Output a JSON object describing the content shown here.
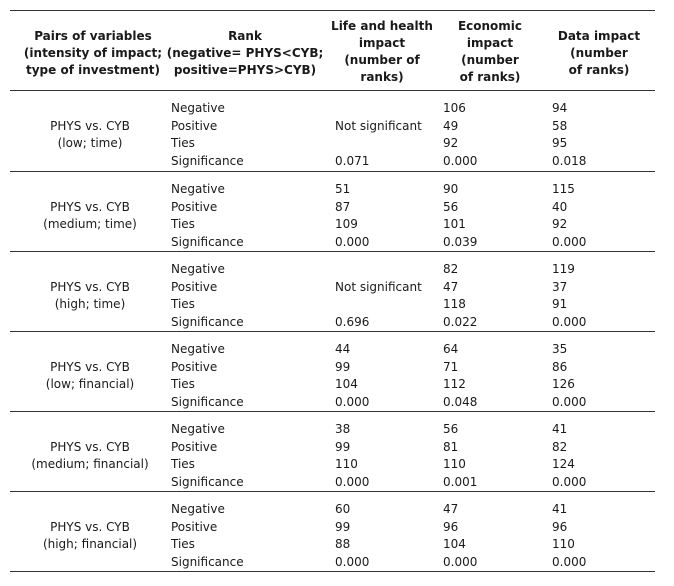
{
  "headers": [
    "Pairs of variables\n(intensity of impact;\ntype of investment)",
    "Rank\n(negative= PHYS<CYB;\npositive=PHYS>CYB)",
    "Life and health\nimpact\n(number of\nranks)",
    "Economic\nimpact\n(number\nof ranks)",
    "Data impact\n(number\nof ranks)"
  ],
  "rank_labels": [
    "Negative",
    "Positive",
    "Ties",
    "Significance"
  ],
  "groups": [
    {
      "pair": [
        "PHYS vs. CYB",
        "(low; time)"
      ],
      "life": [
        "",
        "Not significant",
        "",
        "0.071"
      ],
      "econ": [
        "106",
        "49",
        "92",
        "0.000"
      ],
      "data": [
        "94",
        "58",
        "95",
        "0.018"
      ]
    },
    {
      "pair": [
        "PHYS vs. CYB",
        "(medium; time)"
      ],
      "life": [
        "51",
        "87",
        "109",
        "0.000"
      ],
      "econ": [
        "90",
        "56",
        "101",
        "0.039"
      ],
      "data": [
        "115",
        "40",
        "92",
        "0.000"
      ]
    },
    {
      "pair": [
        "PHYS vs. CYB",
        "(high; time)"
      ],
      "life": [
        "",
        "Not significant",
        "",
        "0.696"
      ],
      "econ": [
        "82",
        "47",
        "118",
        "0.022"
      ],
      "data": [
        "119",
        "37",
        "91",
        "0.000"
      ]
    },
    {
      "pair": [
        "PHYS vs. CYB",
        "(low; financial)"
      ],
      "life": [
        "44",
        "99",
        "104",
        "0.000"
      ],
      "econ": [
        "64",
        "71",
        "112",
        "0.048"
      ],
      "data": [
        "35",
        "86",
        "126",
        "0.000"
      ]
    },
    {
      "pair": [
        "PHYS vs. CYB",
        "(medium; financial)"
      ],
      "life": [
        "38",
        "99",
        "110",
        "0.000"
      ],
      "econ": [
        "56",
        "81",
        "110",
        "0.001"
      ],
      "data": [
        "41",
        "82",
        "124",
        "0.000"
      ]
    },
    {
      "pair": [
        "PHYS vs. CYB",
        "(high; financial)"
      ],
      "life": [
        "60",
        "99",
        "88",
        "0.000"
      ],
      "econ": [
        "47",
        "96",
        "104",
        "0.000"
      ],
      "data": [
        "41",
        "96",
        "110",
        "0.000"
      ]
    }
  ]
}
